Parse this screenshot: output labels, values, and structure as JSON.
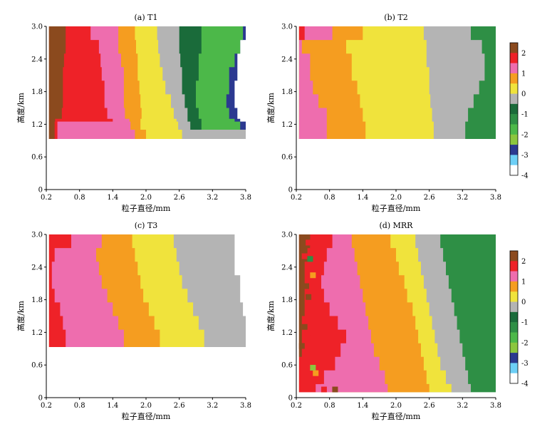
{
  "chart_data": [
    {
      "type": "heatmap",
      "title": "(a) T1",
      "xlabel": "粒子直径/mm",
      "ylabel": "高度/km",
      "xlim": [
        0.2,
        3.8
      ],
      "ylim": [
        0,
        3.0
      ],
      "xticks": [
        "0.2",
        "0.8",
        "1.4",
        "2.0",
        "2.6",
        "3.2",
        "3.8"
      ],
      "yticks": [
        "0",
        "0.6",
        "1.2",
        "1.8",
        "2.4",
        "3.0"
      ],
      "data_y_range": [
        0.93,
        3.0
      ],
      "region_boundaries": {
        "y": [
          3.0,
          2.75,
          2.5,
          2.25,
          2.0,
          1.75,
          1.5,
          1.3,
          1.25,
          1.1,
          0.93
        ],
        "bands": [
          {
            "value": 2.5,
            "x_right": [
              0.55,
              0.55,
              0.52,
              0.5,
              0.5,
              0.5,
              0.48,
              0.36,
              0.35,
              0.35,
              0.35
            ]
          },
          {
            "value": 2.0,
            "x_right": [
              1.0,
              1.15,
              1.18,
              1.2,
              1.25,
              1.25,
              1.3,
              1.4,
              0.4,
              0.4,
              0.4
            ]
          },
          {
            "value": 1.5,
            "x_right": [
              1.5,
              1.5,
              1.55,
              1.6,
              1.6,
              1.6,
              1.62,
              1.7,
              1.72,
              1.8,
              1.8
            ]
          },
          {
            "value": 0.75,
            "x_right": [
              1.8,
              1.82,
              1.85,
              1.85,
              1.88,
              1.9,
              1.92,
              1.9,
              1.9,
              2.0,
              1.72
            ]
          },
          {
            "value": 0.25,
            "x_right": [
              2.2,
              2.22,
              2.25,
              2.3,
              2.35,
              2.45,
              2.5,
              2.55,
              2.58,
              2.65,
              2.75
            ]
          },
          {
            "value": -0.25,
            "x_right": [
              2.6,
              2.6,
              2.62,
              2.65,
              2.65,
              2.7,
              2.75,
              2.75,
              2.8,
              3.8,
              3.8
            ]
          },
          {
            "value": -0.75,
            "x_right": [
              3.0,
              3.0,
              2.95,
              2.95,
              2.9,
              2.9,
              2.95,
              3.0,
              3.0,
              3.8,
              3.8
            ]
          },
          {
            "value": -1.5,
            "x_right": [
              3.75,
              3.7,
              3.6,
              3.5,
              3.5,
              3.45,
              3.5,
              3.6,
              3.7,
              3.8,
              3.8
            ]
          },
          {
            "value": -2.5,
            "x_right": [
              3.8,
              3.7,
              3.65,
              3.65,
              3.6,
              3.6,
              3.65,
              3.7,
              3.8,
              3.8,
              3.8
            ]
          }
        ]
      }
    },
    {
      "type": "heatmap",
      "title": "(b) T2",
      "xlabel": "粒子直径/mm",
      "ylabel": "高度/km",
      "xlim": [
        0.2,
        3.8
      ],
      "ylim": [
        0,
        3.0
      ],
      "xticks": [
        "0.2",
        "0.8",
        "1.4",
        "2.0",
        "2.6",
        "3.2",
        "3.8"
      ],
      "yticks": [
        "0",
        "0.6",
        "1.2",
        "1.8",
        "2.4",
        "3.0"
      ],
      "data_y_range": [
        0.93,
        3.0
      ],
      "region_boundaries": {
        "y": [
          3.0,
          2.75,
          2.5,
          2.25,
          2.0,
          1.75,
          1.5,
          1.25,
          0.93
        ],
        "bands": [
          {
            "value": 2.0,
            "x_right": [
              0.35,
              0.25,
              0.25,
              0.25,
              0.25,
              0.25,
              0.25,
              0.25,
              0.25
            ]
          },
          {
            "value": 1.5,
            "x_right": [
              0.85,
              0.3,
              0.45,
              0.45,
              0.5,
              0.6,
              0.75,
              0.75,
              0.75
            ]
          },
          {
            "value": 0.75,
            "x_right": [
              1.4,
              1.1,
              1.2,
              1.2,
              1.3,
              1.35,
              1.4,
              1.45,
              1.5
            ]
          },
          {
            "value": 0.25,
            "x_right": [
              1.65,
              1.8,
              1.8,
              1.85,
              1.85,
              1.9,
              1.95,
              1.95,
              1.95
            ]
          },
          {
            "value": 0.25,
            "x_right": [
              2.5,
              2.55,
              2.55,
              2.6,
              2.6,
              2.62,
              2.65,
              2.68,
              2.7
            ]
          },
          {
            "value": -0.25,
            "x_right": [
              3.35,
              3.55,
              3.6,
              3.6,
              3.5,
              3.4,
              3.3,
              3.25,
              3.25
            ]
          },
          {
            "value": -1.0,
            "x_right": [
              3.8,
              3.8,
              3.8,
              3.8,
              3.8,
              3.8,
              3.8,
              3.8,
              3.8
            ]
          }
        ]
      }
    },
    {
      "type": "heatmap",
      "title": "(c) T3",
      "xlabel": "粒子直径/mm",
      "ylabel": "高度/km",
      "xlim": [
        0.2,
        3.8
      ],
      "ylim": [
        0,
        3.0
      ],
      "xticks": [
        "0.2",
        "0.8",
        "1.4",
        "2.0",
        "2.6",
        "3.2",
        "3.8"
      ],
      "yticks": [
        "0",
        "0.6",
        "1.2",
        "1.8",
        "2.4",
        "3.0"
      ],
      "data_y_range": [
        0.93,
        3.0
      ],
      "region_boundaries": {
        "y": [
          3.0,
          2.75,
          2.5,
          2.25,
          2.0,
          1.75,
          1.5,
          1.25,
          0.93
        ],
        "bands": [
          {
            "value": 2.0,
            "x_right": [
              0.65,
              0.35,
              0.3,
              0.3,
              0.35,
              0.45,
              0.5,
              0.55,
              0.6
            ]
          },
          {
            "value": 1.5,
            "x_right": [
              1.2,
              1.1,
              1.15,
              1.2,
              1.3,
              1.4,
              1.5,
              1.6,
              1.75
            ]
          },
          {
            "value": 0.75,
            "x_right": [
              1.75,
              1.8,
              1.85,
              1.9,
              1.95,
              2.05,
              2.15,
              2.25,
              2.4
            ]
          },
          {
            "value": 0.25,
            "x_right": [
              2.5,
              2.55,
              2.6,
              2.65,
              2.75,
              2.85,
              2.95,
              3.05,
              3.1
            ]
          },
          {
            "value": -0.25,
            "x_right": [
              3.6,
              3.6,
              3.6,
              3.7,
              3.7,
              3.75,
              3.8,
              3.8,
              3.8
            ]
          }
        ]
      }
    },
    {
      "type": "heatmap",
      "title": "(d) MRR",
      "xlabel": "粒子直径/mm",
      "ylabel": "高度/km",
      "xlim": [
        0.2,
        3.8
      ],
      "ylim": [
        0,
        3.0
      ],
      "xticks": [
        "0.2",
        "0.8",
        "1.4",
        "2.0",
        "2.6",
        "3.2",
        "3.8"
      ],
      "yticks": [
        "0",
        "0.6",
        "1.2",
        "1.8",
        "2.4",
        "3.0"
      ],
      "data_y_range": [
        0.1,
        3.0
      ],
      "region_boundaries": {
        "y": [
          3.0,
          2.75,
          2.5,
          2.25,
          2.0,
          1.75,
          1.5,
          1.25,
          1.0,
          0.75,
          0.5,
          0.25,
          0.1
        ],
        "bands": [
          {
            "value": 2.5,
            "x_right": [
              0.45,
              0.4,
              0.35,
              0.35,
              0.35,
              0.35,
              0.3,
              0.3,
              0.3,
              0.25,
              0.25,
              0.25,
              0.25
            ]
          },
          {
            "value": 2.0,
            "x_right": [
              0.85,
              0.75,
              0.7,
              0.65,
              0.7,
              0.8,
              0.95,
              1.1,
              1.0,
              0.9,
              0.7,
              0.55,
              1.1
            ]
          },
          {
            "value": 1.5,
            "x_right": [
              1.2,
              1.25,
              1.3,
              1.35,
              1.4,
              1.45,
              1.5,
              1.55,
              1.6,
              1.7,
              1.8,
              1.85,
              2.0
            ]
          },
          {
            "value": 0.75,
            "x_right": [
              1.9,
              2.0,
              2.05,
              2.15,
              2.2,
              2.3,
              2.35,
              2.4,
              2.45,
              2.5,
              2.55,
              2.6,
              2.7
            ]
          },
          {
            "value": 0.25,
            "x_right": [
              2.35,
              2.4,
              2.45,
              2.5,
              2.55,
              2.6,
              2.65,
              2.7,
              2.75,
              2.8,
              2.9,
              3.0,
              3.05
            ]
          },
          {
            "value": -0.25,
            "x_right": [
              2.8,
              2.85,
              2.9,
              2.95,
              3.0,
              3.05,
              3.1,
              3.15,
              3.2,
              3.25,
              3.3,
              3.35,
              3.3
            ]
          },
          {
            "value": -1.0,
            "x_right": [
              3.8,
              3.8,
              3.8,
              3.8,
              3.8,
              3.8,
              3.8,
              3.8,
              3.8,
              3.8,
              3.8,
              3.8,
              3.8
            ]
          }
        ]
      },
      "scatter_cells": [
        {
          "x": 0.32,
          "y": 2.9,
          "value": 2.5
        },
        {
          "x": 0.42,
          "y": 2.85,
          "value": 2.0
        },
        {
          "x": 0.5,
          "y": 2.75,
          "value": 2.0
        },
        {
          "x": 0.35,
          "y": 2.6,
          "value": 2.0
        },
        {
          "x": 0.45,
          "y": 2.55,
          "value": -1.0
        },
        {
          "x": 0.5,
          "y": 2.25,
          "value": 0.75
        },
        {
          "x": 0.38,
          "y": 2.05,
          "value": 2.5
        },
        {
          "x": 0.42,
          "y": 1.85,
          "value": 2.5
        },
        {
          "x": 0.48,
          "y": 1.55,
          "value": 2.0
        },
        {
          "x": 0.35,
          "y": 1.3,
          "value": 2.5
        },
        {
          "x": 0.5,
          "y": 1.1,
          "value": 2.0
        },
        {
          "x": 0.3,
          "y": 0.95,
          "value": 2.5
        },
        {
          "x": 0.45,
          "y": 0.75,
          "value": 2.0
        },
        {
          "x": 0.5,
          "y": 0.55,
          "value": -2.0
        },
        {
          "x": 0.55,
          "y": 0.45,
          "value": 0.75
        },
        {
          "x": 0.6,
          "y": 0.3,
          "value": 2.0
        },
        {
          "x": 0.9,
          "y": 0.15,
          "value": 2.5
        },
        {
          "x": 0.7,
          "y": 0.15,
          "value": 2.0
        }
      ]
    }
  ],
  "colorbar": {
    "ticks": [
      "2",
      "1",
      "0",
      "-1",
      "-2",
      "-3",
      "-4"
    ],
    "segments": [
      {
        "value": 2.5,
        "color": "#8B4A1E"
      },
      {
        "value": 2.0,
        "color": "#EE2228"
      },
      {
        "value": 1.5,
        "color": "#EE6DAE"
      },
      {
        "value": 1.0,
        "color": "#F59D20"
      },
      {
        "value": 0.5,
        "color": "#F0E33C"
      },
      {
        "value": 0.0,
        "color": "#B4B4B4"
      },
      {
        "value": -0.5,
        "color": "#1A6B3A"
      },
      {
        "value": -1.0,
        "color": "#2E8F45"
      },
      {
        "value": -1.5,
        "color": "#4CB849"
      },
      {
        "value": -2.0,
        "color": "#8CC63E"
      },
      {
        "value": -2.5,
        "color": "#2B3990"
      },
      {
        "value": -3.0,
        "color": "#6DCFF6"
      },
      {
        "value": -3.5,
        "color": "#FFFFFF"
      }
    ]
  }
}
